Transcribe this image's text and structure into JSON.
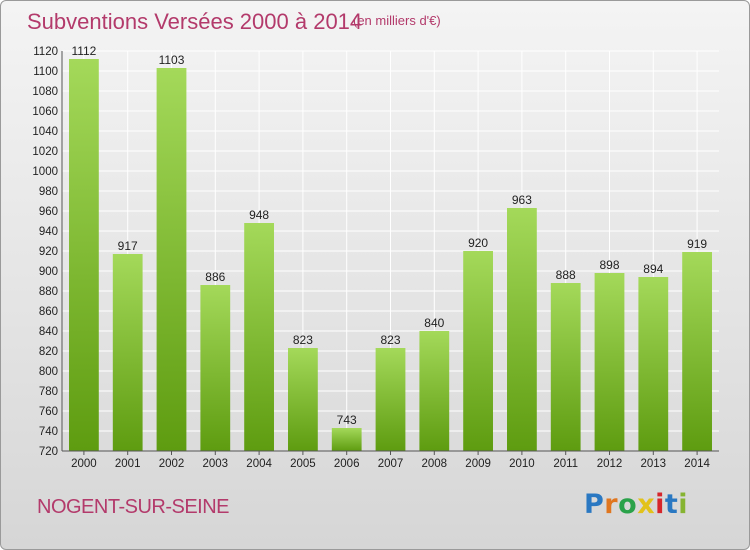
{
  "header": {
    "title": "Subventions Versées 2000 à 2014",
    "subtitle": "(en milliers d'€)"
  },
  "footer": {
    "place": "NOGENT-SUR-SEINE",
    "logo_letters": [
      "P",
      "r",
      "o",
      "x",
      "i",
      "t",
      "i"
    ]
  },
  "colors": {
    "accent": "#b33a6b",
    "bar_top": "#a4d95a",
    "bar_bottom": "#5e9c10",
    "grid": "#ffffff"
  },
  "chart_data": {
    "type": "bar",
    "title": "Subventions Versées 2000 à 2014",
    "subtitle": "(en milliers d'€)",
    "categories": [
      "2000",
      "2001",
      "2002",
      "2003",
      "2004",
      "2005",
      "2006",
      "2007",
      "2008",
      "2009",
      "2010",
      "2011",
      "2012",
      "2013",
      "2014"
    ],
    "values": [
      1112,
      917,
      1103,
      886,
      948,
      823,
      743,
      823,
      840,
      920,
      963,
      888,
      898,
      894,
      919
    ],
    "ylim": [
      720,
      1120
    ],
    "yticks": [
      720,
      740,
      760,
      780,
      800,
      820,
      840,
      860,
      880,
      900,
      920,
      940,
      960,
      980,
      1000,
      1020,
      1040,
      1060,
      1080,
      1100,
      1120
    ],
    "grid": true,
    "xlabel": "",
    "ylabel": ""
  }
}
